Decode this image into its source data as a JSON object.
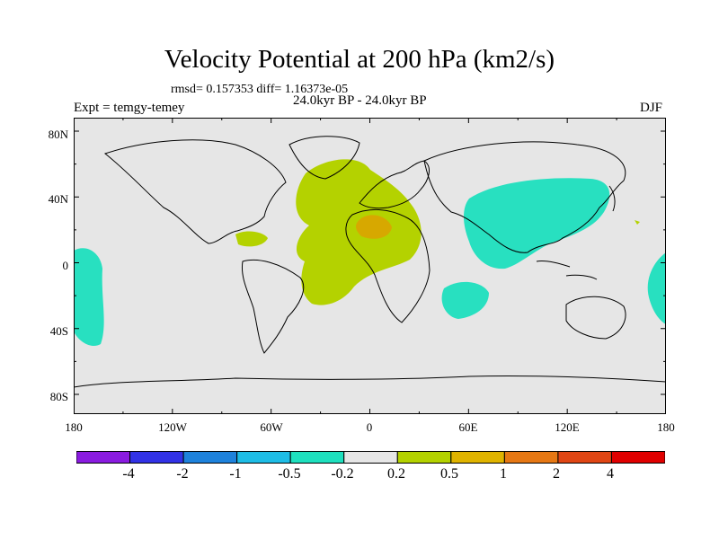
{
  "title": "Velocity Potential at 200 hPa (km2/s)",
  "stats_line": "rmsd= 0.157353  diff= 1.16373e-05",
  "period_line": "24.0kyr BP - 24.0kyr BP",
  "experiment_label": "Expt = temgy-temey",
  "season_label": "DJF",
  "lat_labels": [
    "80N",
    "40N",
    "0",
    "40S",
    "80S"
  ],
  "lon_labels": [
    "180",
    "120W",
    "60W",
    "0",
    "60E",
    "120E",
    "180"
  ],
  "colorbar": {
    "colors": [
      "#8a1be0",
      "#3232e6",
      "#1e82dc",
      "#1ebde6",
      "#1ee0be",
      "#e6e6e6",
      "#b4d200",
      "#e0b400",
      "#e67814",
      "#e04614",
      "#e00000"
    ],
    "labels": [
      "-4",
      "-2",
      "-1",
      "-0.5",
      "-0.2",
      "0.2",
      "0.5",
      "1",
      "2",
      "4"
    ]
  },
  "colors": {
    "background_zero": "#e6e6e6",
    "positive_light": "#b4d200",
    "positive_mid": "#d7a800",
    "negative_light": "#28e0c0"
  }
}
